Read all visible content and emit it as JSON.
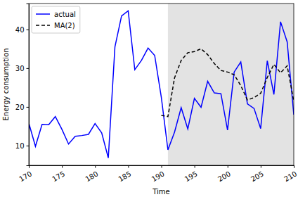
{
  "chart_data": {
    "type": "line",
    "x_label": "Time",
    "y_label": "Energy consumption",
    "x": [
      170,
      171,
      172,
      173,
      174,
      175,
      176,
      177,
      178,
      179,
      180,
      181,
      182,
      183,
      184,
      185,
      186,
      187,
      188,
      189,
      190,
      191,
      192,
      193,
      194,
      195,
      196,
      197,
      198,
      199,
      200,
      201,
      202,
      203,
      204,
      205,
      206,
      207,
      208,
      209,
      210
    ],
    "series": [
      {
        "name": "actual",
        "color": "#0000ff",
        "line_style": "solid",
        "values": [
          15.8,
          9.8,
          15.5,
          15.4,
          17.5,
          14.2,
          10.4,
          12.4,
          12.6,
          12.9,
          15.7,
          13.3,
          6.8,
          35.5,
          43.5,
          44.8,
          29.6,
          32.0,
          35.2,
          33.3,
          22.5,
          8.9,
          13.5,
          19.8,
          14.3,
          22.2,
          19.9,
          26.6,
          23.6,
          23.4,
          14.0,
          29.0,
          31.6,
          20.8,
          19.6,
          14.4,
          31.9,
          23.2,
          42.0,
          36.8,
          18.0
        ]
      },
      {
        "name": "MA(2)",
        "color": "#000000",
        "line_style": "dashed",
        "values": [
          null,
          null,
          null,
          null,
          null,
          null,
          null,
          null,
          null,
          null,
          null,
          null,
          null,
          null,
          null,
          null,
          null,
          null,
          null,
          null,
          17.8,
          17.5,
          27.5,
          32.0,
          34.0,
          34.3,
          35.0,
          33.5,
          31.2,
          29.4,
          29.0,
          28.3,
          25.5,
          21.8,
          22.4,
          23.5,
          27.6,
          31.0,
          28.8,
          30.6,
          21.5
        ]
      }
    ],
    "shaded_x": [
      191,
      210
    ],
    "xlim": [
      170,
      210
    ],
    "ylim": [
      4.9,
      46.7
    ],
    "xticks": [
      170,
      175,
      180,
      185,
      190,
      195,
      200,
      205,
      210
    ],
    "yticks": [
      10,
      20,
      30,
      40
    ],
    "legend": "upper-left",
    "grid": false
  }
}
